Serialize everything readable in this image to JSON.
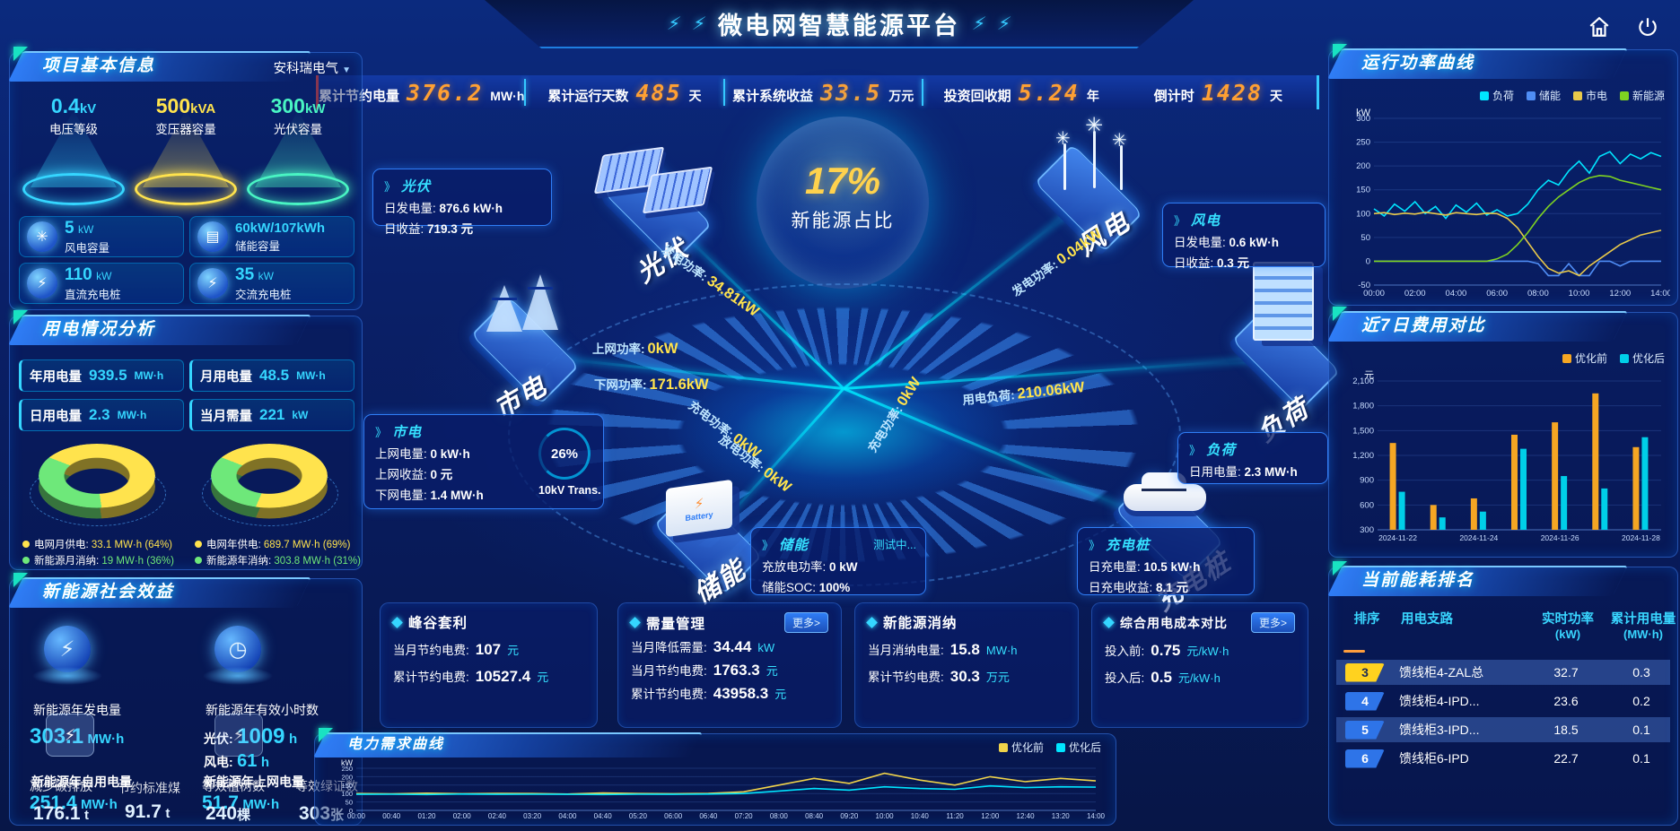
{
  "colors": {
    "accent_cyan": "#35d6ff",
    "value_yellow": "#ffe34d",
    "kpi_orange": "#ffa033",
    "legend_green": "#6ee87a",
    "bar_before": "#f5a623",
    "bar_after": "#00cfe8",
    "panel_border": "#3c82f6"
  },
  "header": {
    "title": "微电网智慧能源平台",
    "bolt_icon": "⚡"
  },
  "kpi": {
    "items": [
      {
        "label": "累计节约电量",
        "value": "376.2",
        "unit": "MW·h"
      },
      {
        "label": "累计运行天数",
        "value": "485",
        "unit": "天"
      },
      {
        "label": "累计系统收益",
        "value": "33.5",
        "unit": "万元"
      },
      {
        "label": "投资回收期",
        "value": "5.24",
        "unit": "年"
      },
      {
        "label": "倒计时",
        "value": "1428",
        "unit": "天"
      }
    ]
  },
  "project": {
    "title": "项目基本信息",
    "company": "安科瑞电气",
    "dropdown_icon": "▼",
    "cones": [
      {
        "value": "0.4",
        "unit": "kV",
        "label": "电压等级"
      },
      {
        "value": "500",
        "unit": "kVA",
        "label": "变压器容量"
      },
      {
        "value": "300",
        "unit": "kW",
        "label": "光伏容量"
      }
    ],
    "stats": [
      {
        "value": "5",
        "unit": "kW",
        "label": "风电容量",
        "icon_glyph": "✳"
      },
      {
        "value": "60kW/107kWh",
        "unit": "",
        "label": "储能容量",
        "icon_glyph": "▤"
      },
      {
        "value": "110",
        "unit": "kW",
        "label": "直流充电桩",
        "icon_glyph": "⚡"
      },
      {
        "value": "35",
        "unit": "kW",
        "label": "交流充电桩",
        "icon_glyph": "⚡"
      }
    ]
  },
  "usage": {
    "title": "用电情况分析",
    "stats": [
      {
        "label": "年用电量",
        "value": "939.5",
        "unit": "MW·h"
      },
      {
        "label": "月用电量",
        "value": "48.5",
        "unit": "MW·h"
      },
      {
        "label": "日用电量",
        "value": "2.3",
        "unit": "MW·h"
      },
      {
        "label": "当月需量",
        "value": "221",
        "unit": "kW"
      }
    ],
    "donuts": [
      {
        "grid_pct": 64,
        "legend": [
          {
            "label": "电网月供电:",
            "value": "33.1 MW·h (64%)"
          },
          {
            "label": "新能源月消纳:",
            "value": "19 MW·h (36%)"
          }
        ]
      },
      {
        "grid_pct": 69,
        "legend": [
          {
            "label": "电网年供电:",
            "value": "689.7 MW·h (69%)"
          },
          {
            "label": "新能源年消纳:",
            "value": "303.8 MW·h (31%)"
          }
        ]
      }
    ]
  },
  "benefit": {
    "title": "新能源社会效益",
    "gen": {
      "label": "新能源年发电量",
      "value": "303.1",
      "unit": "MW·h"
    },
    "hours": {
      "label": "新能源年有效小时数",
      "pv_label": "光伏:",
      "pv_value": "1009",
      "pv_unit": "h",
      "wind_label": "风电:",
      "wind_value": "61",
      "wind_unit": "h"
    },
    "self_use": {
      "label": "新能源年自用电量",
      "value": "251.4",
      "unit": "MW·h"
    },
    "co2": {
      "label": "减少碳排放",
      "value": "176.1",
      "unit": "t"
    },
    "coal": {
      "label": "节约标准煤",
      "value": "91.7",
      "unit": "t"
    },
    "to_grid": {
      "label": "新能源年上网电量",
      "value": "51.7",
      "unit": "MW·h"
    },
    "trees": {
      "label": "等效植树数",
      "value": "240",
      "unit": "棵"
    },
    "certs": {
      "label": "等效绿证数",
      "value": "303",
      "unit": "张"
    }
  },
  "scene": {
    "center_value": "17%",
    "center_label": "新能源占比",
    "battery_text": "Battery",
    "labels": {
      "pv": "光伏",
      "wind": "风电",
      "grid": "市电",
      "storage": "储能",
      "charger": "充电桩",
      "load": "负荷"
    },
    "transformer": {
      "pct": "26%",
      "label": "10kV Trans."
    },
    "boxes": {
      "pv": {
        "title": "光伏",
        "lines": [
          {
            "label": "日发电量:",
            "value": "876.6 kW·h"
          },
          {
            "label": "日收益:",
            "value": "719.3 元"
          }
        ]
      },
      "wind": {
        "title": "风电",
        "lines": [
          {
            "label": "日发电量:",
            "value": "0.6 kW·h"
          },
          {
            "label": "日收益:",
            "value": "0.3 元"
          }
        ]
      },
      "grid": {
        "title": "市电",
        "lines": [
          {
            "label": "上网电量:",
            "value": "0 kW·h"
          },
          {
            "label": "上网收益:",
            "value": "0 元"
          },
          {
            "label": "下网电量:",
            "value": "1.4 MW·h"
          }
        ]
      },
      "load": {
        "title": "负荷",
        "lines": [
          {
            "label": "日用电量:",
            "value": "2.3 MW·h"
          }
        ]
      },
      "storage": {
        "title": "储能",
        "status": "测试中...",
        "lines": [
          {
            "label": "充放电功率:",
            "value": "0 kW"
          },
          {
            "label": "储能SOC:",
            "value": "100%"
          }
        ]
      },
      "charger": {
        "title": "充电桩",
        "lines": [
          {
            "label": "日充电量:",
            "value": "10.5 kW·h"
          },
          {
            "label": "日充电收益:",
            "value": "8.1 元"
          }
        ]
      }
    },
    "flows": [
      {
        "label": "发电功率:",
        "value": "34.81kW"
      },
      {
        "label": "上网功率:",
        "value": "0kW"
      },
      {
        "label": "下网功率:",
        "value": "171.6kW"
      },
      {
        "label": "发电功率:",
        "value": "0.04kW"
      },
      {
        "label": "用电负荷:",
        "value": "210.06kW"
      },
      {
        "label": "充电功率:",
        "value": "0kW"
      },
      {
        "label": "放电功率:",
        "value": "0kW"
      },
      {
        "label": "充电功率:",
        "value": "0kW"
      }
    ]
  },
  "cards": [
    {
      "title": "峰谷套利",
      "lines": [
        {
          "label": "当月节约电费:",
          "value": "107",
          "unit": "元"
        },
        {
          "label": "累计节约电费:",
          "value": "10527.4",
          "unit": "元"
        }
      ]
    },
    {
      "title": "需量管理",
      "more": "更多>",
      "lines": [
        {
          "label": "当月降低需量:",
          "value": "34.44",
          "unit": "kW"
        },
        {
          "label": "当月节约电费:",
          "value": "1763.3",
          "unit": "元"
        },
        {
          "label": "累计节约电费:",
          "value": "43958.3",
          "unit": "元"
        }
      ]
    },
    {
      "title": "新能源消纳",
      "lines": [
        {
          "label": "当月消纳电量:",
          "value": "15.8",
          "unit": "MW·h"
        },
        {
          "label": "累计节约电费:",
          "value": "30.3",
          "unit": "万元"
        }
      ]
    },
    {
      "title": "综合用电成本对比",
      "more": "更多>",
      "lines": [
        {
          "label": "投入前:",
          "value": "0.75",
          "unit": "元/kW·h"
        },
        {
          "label": "投入后:",
          "value": "0.5",
          "unit": "元/kW·h"
        }
      ]
    }
  ],
  "panels": {
    "demand_title": "电力需求曲线",
    "power_title": "运行功率曲线",
    "cost_title": "近7日费用对比",
    "rank_title": "当前能耗排名"
  },
  "ranking": {
    "headers": [
      {
        "t": "排序",
        "s": ""
      },
      {
        "t": "用电支路",
        "s": ""
      },
      {
        "t": "实时功率",
        "s": "(kW)"
      },
      {
        "t": "累计用电量",
        "s": "(MW·h)"
      }
    ],
    "rows": [
      {
        "rank": "3",
        "branch": "馈线柜4-ZAL总",
        "power": "32.7",
        "energy": "0.3"
      },
      {
        "rank": "4",
        "branch": "馈线柜4-IPD...",
        "power": "23.6",
        "energy": "0.2"
      },
      {
        "rank": "5",
        "branch": "馈线柜3-IPD...",
        "power": "18.5",
        "energy": "0.1"
      },
      {
        "rank": "6",
        "branch": "馈线柜6-IPD",
        "power": "22.7",
        "energy": "0.1"
      }
    ]
  },
  "chart_data": [
    {
      "type": "line",
      "title": "运行功率曲线",
      "ylabel": "kW",
      "ylim": [
        -50,
        300
      ],
      "yticks": [
        300,
        250,
        200,
        150,
        100,
        50,
        0,
        -50
      ],
      "xticks": [
        "00:00",
        "02:00",
        "04:00",
        "06:00",
        "08:00",
        "10:00",
        "12:00",
        "14:00"
      ],
      "legend_position": "top",
      "grid": true,
      "series": [
        {
          "name": "负荷",
          "color": "#00e5ff",
          "values": [
            110,
            95,
            120,
            105,
            125,
            100,
            115,
            90,
            118,
            103,
            122,
            97,
            108,
            95,
            100,
            120,
            150,
            170,
            160,
            190,
            210,
            185,
            220,
            230,
            205,
            225,
            215,
            228,
            220
          ]
        },
        {
          "name": "储能",
          "color": "#4f8df5",
          "values": [
            0,
            0,
            0,
            0,
            0,
            0,
            0,
            0,
            0,
            0,
            0,
            0,
            0,
            0,
            0,
            0,
            -5,
            -30,
            -30,
            -5,
            -30,
            -30,
            0,
            0,
            -10,
            0,
            0,
            0,
            0
          ]
        },
        {
          "name": "市电",
          "color": "#e9c94a",
          "values": [
            100,
            102,
            98,
            101,
            99,
            103,
            100,
            97,
            102,
            100,
            98,
            101,
            100,
            90,
            70,
            40,
            10,
            -15,
            -25,
            -20,
            -30,
            -10,
            5,
            20,
            35,
            45,
            55,
            60,
            65
          ]
        },
        {
          "name": "新能源",
          "color": "#7ed321",
          "values": [
            0,
            0,
            0,
            0,
            0,
            0,
            0,
            0,
            0,
            0,
            0,
            0,
            5,
            15,
            35,
            60,
            90,
            115,
            135,
            150,
            165,
            175,
            180,
            178,
            170,
            165,
            160,
            155,
            150
          ]
        }
      ]
    },
    {
      "type": "bar",
      "title": "近7日费用对比",
      "ylabel": "元",
      "ylim": [
        300,
        2100
      ],
      "yticks": [
        2100,
        1800,
        1500,
        1200,
        900,
        600,
        300
      ],
      "categories": [
        "2024-11-22",
        "2024-11-23",
        "2024-11-24",
        "2024-11-25",
        "2024-11-26",
        "2024-11-27",
        "2024-11-28"
      ],
      "xticks_shown": [
        "2024-11-22",
        "2024-11-24",
        "2024-11-26",
        "2024-11-28"
      ],
      "legend_position": "top-right",
      "grid": true,
      "series": [
        {
          "name": "优化前",
          "color": "#f5a623",
          "values": [
            1350,
            600,
            680,
            1450,
            1600,
            1950,
            1300
          ]
        },
        {
          "name": "优化后",
          "color": "#00cfe8",
          "values": [
            760,
            450,
            520,
            1280,
            950,
            800,
            1420
          ]
        }
      ]
    },
    {
      "type": "line",
      "title": "电力需求曲线",
      "ylabel": "kW",
      "ylim": [
        0,
        250
      ],
      "yticks": [
        250,
        200,
        150,
        100,
        50,
        0
      ],
      "xticks": [
        "00:00",
        "00:40",
        "01:20",
        "02:00",
        "02:40",
        "03:20",
        "04:00",
        "04:40",
        "05:20",
        "06:00",
        "06:40",
        "07:20",
        "08:00",
        "08:40",
        "09:20",
        "10:00",
        "10:40",
        "11:20",
        "12:00",
        "12:40",
        "13:20",
        "14:00"
      ],
      "legend_position": "top-right",
      "grid": true,
      "series": [
        {
          "name": "优化前",
          "color": "#f0d34a",
          "values": [
            100,
            98,
            102,
            99,
            101,
            100,
            97,
            103,
            100,
            99,
            101,
            110,
            150,
            190,
            160,
            220,
            180,
            150,
            200,
            170,
            190,
            175
          ]
        },
        {
          "name": "优化后",
          "color": "#00e5ff",
          "values": [
            95,
            96,
            94,
            97,
            95,
            96,
            95,
            94,
            96,
            95,
            97,
            100,
            115,
            130,
            120,
            140,
            130,
            125,
            145,
            135,
            140,
            138
          ]
        }
      ]
    }
  ]
}
